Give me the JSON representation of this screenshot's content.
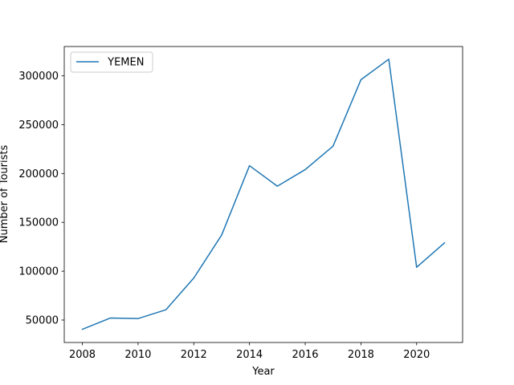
{
  "chart_data": {
    "type": "line",
    "title": "",
    "xlabel": "Year",
    "ylabel": "Number of Tourists",
    "xlim": [
      2007.35,
      2021.65
    ],
    "ylim": [
      27000,
      330000
    ],
    "xticks": [
      2008,
      2010,
      2012,
      2014,
      2016,
      2018,
      2020
    ],
    "yticks": [
      50000,
      100000,
      150000,
      200000,
      250000,
      300000
    ],
    "grid": false,
    "legend": {
      "position": "upper-left"
    },
    "series": [
      {
        "name": " YEMEN",
        "color": "#1f77b4",
        "x": [
          2008,
          2009,
          2010,
          2011,
          2012,
          2013,
          2014,
          2015,
          2016,
          2017,
          2018,
          2019,
          2020,
          2021
        ],
        "values": [
          40500,
          52000,
          51500,
          60500,
          93000,
          137000,
          208000,
          187000,
          204000,
          228000,
          296000,
          317000,
          104000,
          129000
        ]
      }
    ]
  }
}
